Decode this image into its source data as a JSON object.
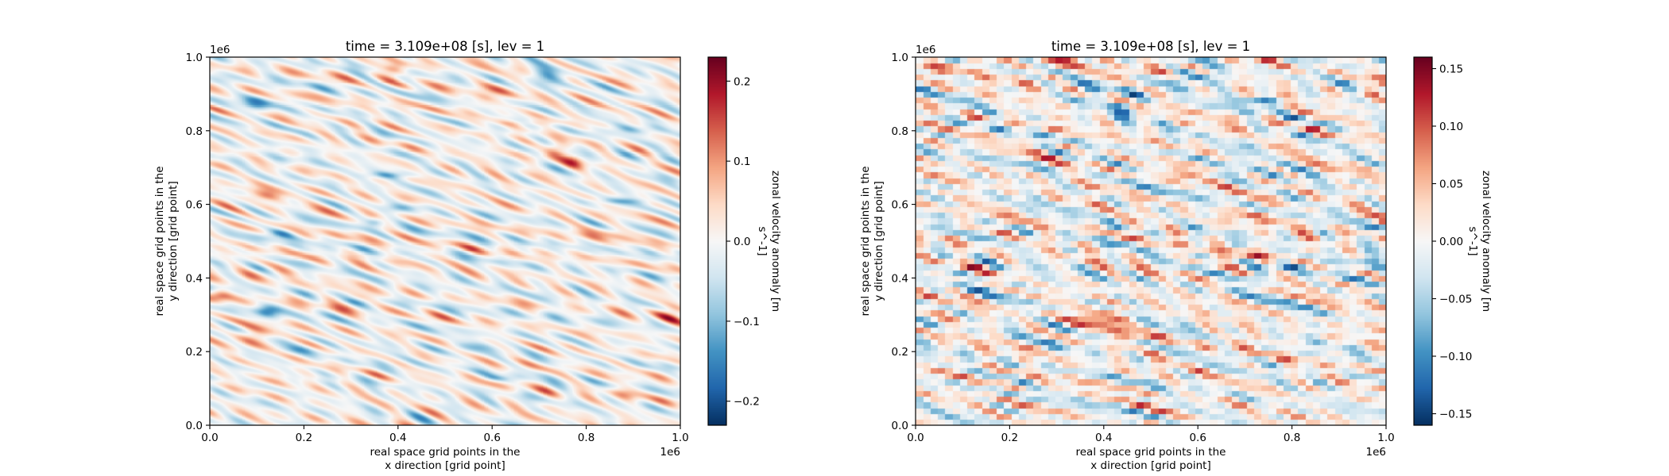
{
  "chart_data": [
    {
      "type": "heatmap",
      "title": "time = 3.109e+08 [s], lev = 1",
      "xlabel_lines": [
        "real space grid points in the",
        "x direction [grid point]"
      ],
      "ylabel_lines": [
        "real space grid points in the",
        "y direction [grid point]"
      ],
      "x_ticks": [
        "0.0",
        "0.2",
        "0.4",
        "0.6",
        "0.8",
        "1.0"
      ],
      "y_ticks": [
        "0.0",
        "0.2",
        "0.4",
        "0.6",
        "0.8",
        "1.0"
      ],
      "x_offset_label": "1e6",
      "y_offset_label": "1e6",
      "xlim": [
        0,
        1000000
      ],
      "ylim": [
        0,
        1000000
      ],
      "grid": false,
      "colormap": "RdBu_r",
      "colorbar": {
        "label_lines": [
          "zonal velocity anomaly [m",
          "s^-1]"
        ],
        "vmin": -0.23,
        "vmax": 0.23,
        "ticks": [
          -0.2,
          -0.1,
          0.0,
          0.1,
          0.2
        ],
        "tick_labels": [
          "−0.2",
          "−0.1",
          "0.0",
          "0.1",
          "0.2"
        ]
      },
      "field_description": "high-resolution turbulent field with elongated streaks",
      "resolution": "high"
    },
    {
      "type": "heatmap",
      "title": "time = 3.109e+08 [s], lev = 1",
      "xlabel_lines": [
        "real space grid points in the",
        "x direction [grid point]"
      ],
      "ylabel_lines": [
        "real space grid points in the",
        "y direction [grid point]"
      ],
      "x_ticks": [
        "0.0",
        "0.2",
        "0.4",
        "0.6",
        "0.8",
        "1.0"
      ],
      "y_ticks": [
        "0.0",
        "0.2",
        "0.4",
        "0.6",
        "0.8",
        "1.0"
      ],
      "x_offset_label": "1e6",
      "y_offset_label": "1e6",
      "xlim": [
        0,
        1000000
      ],
      "ylim": [
        0,
        1000000
      ],
      "grid": false,
      "colormap": "RdBu_r",
      "colorbar": {
        "label_lines": [
          "zonal velocity anomaly [m",
          "s^-1]"
        ],
        "vmin": -0.16,
        "vmax": 0.16,
        "ticks": [
          -0.15,
          -0.1,
          -0.05,
          0.0,
          0.05,
          0.1,
          0.15
        ],
        "tick_labels": [
          "−0.15",
          "−0.10",
          "−0.05",
          "0.00",
          "0.05",
          "0.10",
          "0.15"
        ]
      },
      "field_description": "coarse-grid blocky field",
      "resolution": "coarse"
    }
  ]
}
